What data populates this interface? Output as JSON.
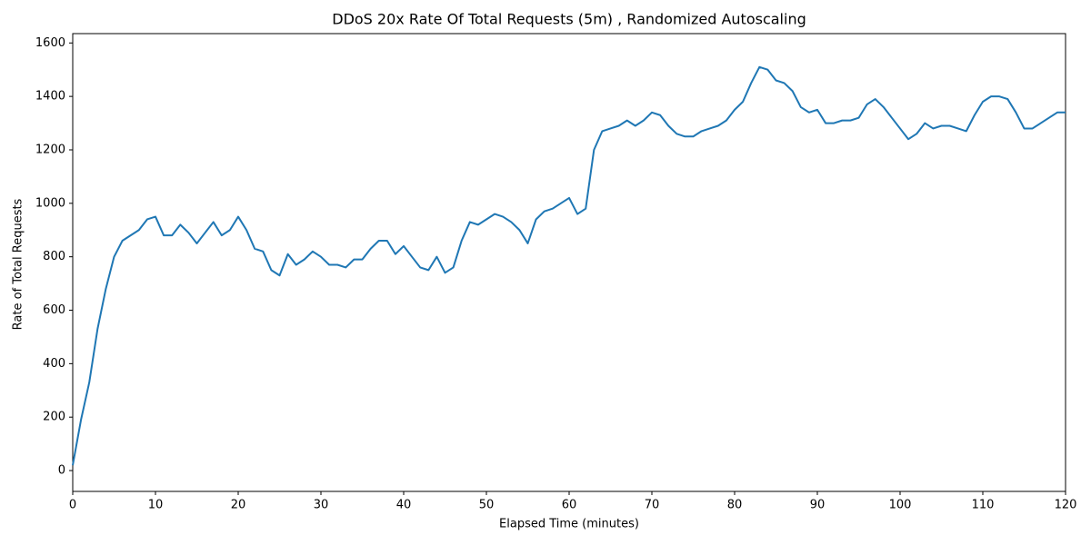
{
  "chart_data": {
    "type": "line",
    "title": "DDoS 20x Rate Of Total Requests (5m) , Randomized Autoscaling",
    "x_label": "Elapsed Time (minutes)",
    "y_label": "Rate of Total Requests",
    "x": [
      0,
      1,
      2,
      3,
      4,
      5,
      6,
      7,
      8,
      9,
      10,
      11,
      12,
      13,
      14,
      15,
      16,
      17,
      18,
      19,
      20,
      21,
      22,
      23,
      24,
      25,
      26,
      27,
      28,
      29,
      30,
      31,
      32,
      33,
      34,
      35,
      36,
      37,
      38,
      39,
      40,
      41,
      42,
      43,
      44,
      45,
      46,
      47,
      48,
      49,
      50,
      51,
      52,
      53,
      54,
      55,
      56,
      57,
      58,
      59,
      60,
      61,
      62,
      63,
      64,
      65,
      66,
      67,
      68,
      69,
      70,
      71,
      72,
      73,
      74,
      75,
      76,
      77,
      78,
      79,
      80,
      81,
      82,
      83,
      84,
      85,
      86,
      87,
      88,
      89,
      90,
      91,
      92,
      93,
      94,
      95,
      96,
      97,
      98,
      99,
      100,
      101,
      102,
      103,
      104,
      105,
      106,
      107,
      108,
      109,
      110,
      111,
      112,
      113,
      114,
      115,
      116,
      117,
      118,
      119,
      120
    ],
    "series": [
      {
        "name": "Rate of Total Requests",
        "color": "#1f77b4",
        "values": [
          20,
          190,
          330,
          530,
          680,
          800,
          860,
          880,
          900,
          940,
          950,
          880,
          880,
          920,
          890,
          850,
          890,
          930,
          880,
          900,
          950,
          900,
          830,
          820,
          750,
          730,
          810,
          770,
          790,
          820,
          800,
          770,
          770,
          760,
          790,
          790,
          830,
          860,
          860,
          810,
          840,
          800,
          760,
          750,
          800,
          740,
          760,
          860,
          930,
          920,
          940,
          960,
          950,
          930,
          900,
          850,
          940,
          970,
          980,
          1000,
          1020,
          960,
          980,
          1200,
          1270,
          1280,
          1290,
          1310,
          1290,
          1310,
          1340,
          1330,
          1290,
          1260,
          1250,
          1250,
          1270,
          1280,
          1290,
          1310,
          1350,
          1380,
          1450,
          1510,
          1500,
          1460,
          1450,
          1420,
          1360,
          1340,
          1350,
          1300,
          1300,
          1310,
          1310,
          1320,
          1370,
          1390,
          1360,
          1320,
          1280,
          1240,
          1260,
          1300,
          1280,
          1290,
          1290,
          1280,
          1270,
          1330,
          1380,
          1400,
          1400,
          1390,
          1340,
          1280,
          1280,
          1300,
          1320,
          1340,
          1340
        ]
      }
    ],
    "xlim": [
      0,
      120
    ],
    "xticks": [
      0,
      10,
      20,
      30,
      40,
      50,
      60,
      70,
      80,
      90,
      100,
      110,
      120
    ],
    "ylim": [
      -78,
      1635
    ],
    "yticks": [
      0,
      200,
      400,
      600,
      800,
      1000,
      1200,
      1400,
      1600
    ],
    "grid": false
  }
}
